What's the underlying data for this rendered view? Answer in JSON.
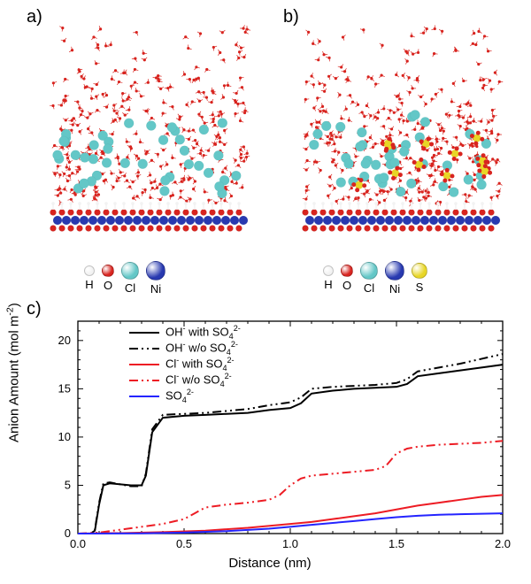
{
  "panel_a": {
    "label": "a)",
    "label_fontsize": 20,
    "atoms": [
      {
        "name": "H",
        "color": "#f2f2f2",
        "size": 12
      },
      {
        "name": "O",
        "color": "#d8241f",
        "size": 14
      },
      {
        "name": "Cl",
        "color": "#63c7c7",
        "size": 20
      },
      {
        "name": "Ni",
        "color": "#2839b0",
        "size": 22
      }
    ],
    "colors": {
      "water_o": "#d8241f",
      "water_h": "#f2f2f2",
      "cl": "#63c7c7",
      "ni": "#2839b0"
    }
  },
  "panel_b": {
    "label": "b)",
    "label_fontsize": 20,
    "atoms": [
      {
        "name": "H",
        "color": "#f2f2f2",
        "size": 12
      },
      {
        "name": "O",
        "color": "#d8241f",
        "size": 14
      },
      {
        "name": "Cl",
        "color": "#63c7c7",
        "size": 20
      },
      {
        "name": "Ni",
        "color": "#2839b0",
        "size": 22
      },
      {
        "name": "S",
        "color": "#e8d626",
        "size": 18
      }
    ],
    "colors": {
      "water_o": "#d8241f",
      "water_h": "#f2f2f2",
      "cl": "#63c7c7",
      "ni": "#2839b0",
      "s": "#e8d626"
    }
  },
  "panel_c": {
    "label": "c)",
    "type": "line",
    "title_fontsize": 15,
    "xlabel": "Distance (nm)",
    "ylabel_plain": "Anion Amount (mol m-2)",
    "label_fontsize": 15,
    "tick_fontsize": 13,
    "xlim": [
      0.0,
      2.0
    ],
    "ylim": [
      0,
      22
    ],
    "xtick_step": 0.5,
    "ytick_step": 5,
    "xticks": [
      0.0,
      0.5,
      1.0,
      1.5,
      2.0
    ],
    "yticks": [
      0,
      5,
      10,
      15,
      20
    ],
    "background_color": "#ffffff",
    "axis_color": "#000000",
    "line_width": 2,
    "series": [
      {
        "name_plain": "OH- with SO4 2-",
        "color": "#000000",
        "style": "solid",
        "data": [
          [
            0.0,
            0.0
          ],
          [
            0.06,
            0.0
          ],
          [
            0.08,
            0.3
          ],
          [
            0.1,
            3.0
          ],
          [
            0.12,
            5.0
          ],
          [
            0.15,
            5.2
          ],
          [
            0.25,
            5.0
          ],
          [
            0.3,
            5.0
          ],
          [
            0.32,
            6.0
          ],
          [
            0.35,
            10.5
          ],
          [
            0.4,
            12.0
          ],
          [
            0.5,
            12.2
          ],
          [
            0.6,
            12.3
          ],
          [
            0.7,
            12.4
          ],
          [
            0.8,
            12.5
          ],
          [
            0.9,
            12.8
          ],
          [
            1.0,
            13.0
          ],
          [
            1.05,
            13.5
          ],
          [
            1.1,
            14.5
          ],
          [
            1.2,
            14.8
          ],
          [
            1.3,
            15.0
          ],
          [
            1.4,
            15.1
          ],
          [
            1.5,
            15.2
          ],
          [
            1.55,
            15.5
          ],
          [
            1.6,
            16.3
          ],
          [
            1.7,
            16.6
          ],
          [
            1.8,
            16.9
          ],
          [
            1.9,
            17.2
          ],
          [
            2.0,
            17.5
          ]
        ]
      },
      {
        "name_plain": "OH- w/o SO4 2-",
        "color": "#000000",
        "style": "dashdotdot",
        "data": [
          [
            0.0,
            0.0
          ],
          [
            0.06,
            0.0
          ],
          [
            0.08,
            0.4
          ],
          [
            0.1,
            3.2
          ],
          [
            0.12,
            5.2
          ],
          [
            0.15,
            5.3
          ],
          [
            0.25,
            4.9
          ],
          [
            0.3,
            4.9
          ],
          [
            0.32,
            6.2
          ],
          [
            0.35,
            10.8
          ],
          [
            0.4,
            12.3
          ],
          [
            0.5,
            12.4
          ],
          [
            0.6,
            12.5
          ],
          [
            0.7,
            12.7
          ],
          [
            0.8,
            12.9
          ],
          [
            0.9,
            13.3
          ],
          [
            1.0,
            13.6
          ],
          [
            1.05,
            14.1
          ],
          [
            1.1,
            15.0
          ],
          [
            1.2,
            15.2
          ],
          [
            1.3,
            15.3
          ],
          [
            1.4,
            15.4
          ],
          [
            1.5,
            15.6
          ],
          [
            1.55,
            16.0
          ],
          [
            1.6,
            16.8
          ],
          [
            1.7,
            17.2
          ],
          [
            1.8,
            17.6
          ],
          [
            1.9,
            18.1
          ],
          [
            2.0,
            18.6
          ]
        ]
      },
      {
        "name_plain": "Cl- with SO4 2-",
        "color": "#ed1c24",
        "style": "solid",
        "data": [
          [
            0.0,
            0.0
          ],
          [
            0.2,
            0.05
          ],
          [
            0.4,
            0.15
          ],
          [
            0.6,
            0.3
          ],
          [
            0.8,
            0.6
          ],
          [
            1.0,
            1.0
          ],
          [
            1.1,
            1.2
          ],
          [
            1.2,
            1.5
          ],
          [
            1.3,
            1.8
          ],
          [
            1.4,
            2.1
          ],
          [
            1.5,
            2.5
          ],
          [
            1.6,
            2.9
          ],
          [
            1.7,
            3.2
          ],
          [
            1.8,
            3.5
          ],
          [
            1.9,
            3.8
          ],
          [
            2.0,
            4.0
          ]
        ]
      },
      {
        "name_plain": "Cl- w/o SO4 2-",
        "color": "#ed1c24",
        "style": "dashdotdot",
        "data": [
          [
            0.0,
            0.0
          ],
          [
            0.1,
            0.1
          ],
          [
            0.2,
            0.4
          ],
          [
            0.3,
            0.7
          ],
          [
            0.4,
            1.0
          ],
          [
            0.5,
            1.5
          ],
          [
            0.55,
            2.1
          ],
          [
            0.6,
            2.7
          ],
          [
            0.7,
            3.0
          ],
          [
            0.8,
            3.2
          ],
          [
            0.9,
            3.5
          ],
          [
            0.95,
            4.0
          ],
          [
            1.0,
            5.0
          ],
          [
            1.05,
            5.7
          ],
          [
            1.1,
            6.0
          ],
          [
            1.2,
            6.2
          ],
          [
            1.3,
            6.4
          ],
          [
            1.4,
            6.6
          ],
          [
            1.45,
            7.0
          ],
          [
            1.5,
            8.3
          ],
          [
            1.55,
            8.8
          ],
          [
            1.6,
            9.0
          ],
          [
            1.7,
            9.2
          ],
          [
            1.8,
            9.3
          ],
          [
            1.9,
            9.4
          ],
          [
            2.0,
            9.6
          ]
        ]
      },
      {
        "name_plain": "SO4 2-",
        "color": "#2424ff",
        "style": "solid",
        "data": [
          [
            0.0,
            0.0
          ],
          [
            0.3,
            0.02
          ],
          [
            0.5,
            0.1
          ],
          [
            0.7,
            0.25
          ],
          [
            0.9,
            0.5
          ],
          [
            1.0,
            0.7
          ],
          [
            1.1,
            0.9
          ],
          [
            1.2,
            1.1
          ],
          [
            1.3,
            1.3
          ],
          [
            1.4,
            1.5
          ],
          [
            1.5,
            1.7
          ],
          [
            1.6,
            1.85
          ],
          [
            1.7,
            1.95
          ],
          [
            1.8,
            2.0
          ],
          [
            1.9,
            2.05
          ],
          [
            2.0,
            2.1
          ]
        ]
      }
    ]
  }
}
